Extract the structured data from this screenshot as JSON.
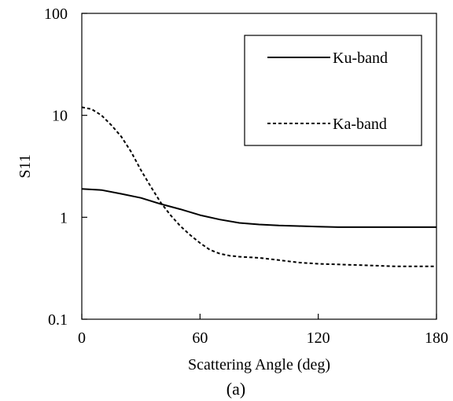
{
  "chart_data": {
    "type": "line",
    "title": "",
    "xlabel": "Scattering Angle (deg)",
    "ylabel": "S11",
    "caption": "(a)",
    "xlim": [
      0,
      180
    ],
    "ylim": [
      0.1,
      100
    ],
    "yscale": "log",
    "xticks": [
      0,
      60,
      120,
      180
    ],
    "yticks": [
      0.1,
      1,
      10,
      100
    ],
    "xtick_labels": [
      "0",
      "60",
      "120",
      "180"
    ],
    "ytick_labels": [
      "0.1",
      "1",
      "10",
      "100"
    ],
    "grid": false,
    "legend_position": "top-right",
    "series": [
      {
        "name": "Ku-band",
        "style": "solid",
        "color": "#000000",
        "x": [
          0,
          10,
          20,
          30,
          40,
          50,
          60,
          70,
          80,
          90,
          100,
          110,
          120,
          130,
          140,
          150,
          160,
          170,
          180
        ],
        "y": [
          1.9,
          1.85,
          1.7,
          1.55,
          1.35,
          1.2,
          1.05,
          0.95,
          0.88,
          0.85,
          0.83,
          0.82,
          0.81,
          0.8,
          0.8,
          0.8,
          0.8,
          0.8,
          0.8
        ]
      },
      {
        "name": "Ka-band",
        "style": "dashed",
        "color": "#000000",
        "x": [
          0,
          5,
          10,
          15,
          20,
          25,
          30,
          35,
          40,
          45,
          50,
          55,
          60,
          65,
          70,
          75,
          80,
          90,
          100,
          110,
          120,
          130,
          140,
          150,
          160,
          170,
          180
        ],
        "y": [
          12,
          11.5,
          10,
          8,
          6.2,
          4.4,
          2.9,
          2.0,
          1.4,
          1.05,
          0.82,
          0.67,
          0.56,
          0.48,
          0.44,
          0.42,
          0.41,
          0.4,
          0.38,
          0.36,
          0.35,
          0.345,
          0.34,
          0.335,
          0.33,
          0.33,
          0.33
        ]
      }
    ]
  }
}
